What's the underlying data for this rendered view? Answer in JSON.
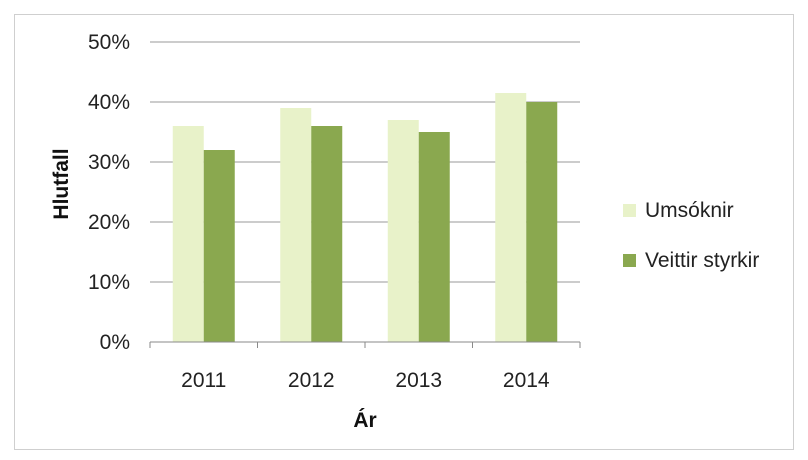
{
  "chart_data": {
    "type": "bar",
    "categories": [
      "2011",
      "2012",
      "2013",
      "2014"
    ],
    "series": [
      {
        "name": "Umsóknir",
        "values": [
          36,
          39,
          37,
          41.5
        ],
        "color": "#e8f2c9"
      },
      {
        "name": "Veittir styrkir",
        "values": [
          32,
          36,
          35,
          40
        ],
        "color": "#8aa84f"
      }
    ],
    "xlabel": "Ár",
    "ylabel": "Hlutfall",
    "ylim": [
      0,
      50
    ],
    "yticks": [
      "0%",
      "10%",
      "20%",
      "30%",
      "40%",
      "50%"
    ],
    "grid": true,
    "legend_position": "right"
  }
}
